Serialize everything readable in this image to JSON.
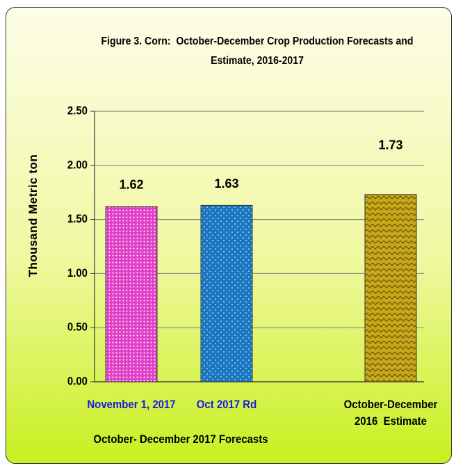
{
  "chart_data": {
    "type": "bar",
    "title": "Figure 3. Corn:  October-December Crop Production Forecasts and Estimate, 2016-2017",
    "y_label": "Thousand Metric ton",
    "group_label": "October- December 2017 Forecasts",
    "categories": [
      "November 1, 2017",
      "Oct 2017 Rd",
      "October-December 2016  Estimate"
    ],
    "values": [
      1.62,
      1.63,
      1.73
    ],
    "colors": [
      "#e040c8",
      "#1a78c2",
      "#c8a818"
    ],
    "ylim": [
      0,
      2.5
    ],
    "yticks": [
      {
        "value": 0,
        "label": "0.00"
      },
      {
        "value": 0.5,
        "label": "0.50"
      },
      {
        "value": 1,
        "label": "1.00"
      },
      {
        "value": 1.5,
        "label": "1.50"
      },
      {
        "value": 2,
        "label": "2.00"
      },
      {
        "value": 2.5,
        "label": "2.50"
      }
    ],
    "grid": true
  }
}
